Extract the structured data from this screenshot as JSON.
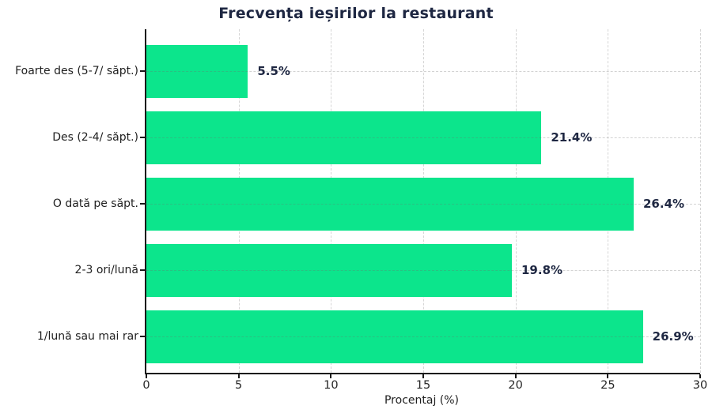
{
  "chart_data": {
    "type": "bar",
    "orientation": "horizontal",
    "title": "Frecvența ieșirilor la restaurant",
    "xlabel": "Procentaj (%)",
    "ylabel": "",
    "categories": [
      "Foarte des (5-7/ săpt.)",
      "Des (2-4/ săpt.)",
      "O dată pe săpt.",
      "2-3 ori/lună",
      "1/lună sau mai rar"
    ],
    "values": [
      5.5,
      21.4,
      26.4,
      19.8,
      26.9
    ],
    "value_labels": [
      "5.5%",
      "21.4%",
      "26.4%",
      "19.8%",
      "26.9%"
    ],
    "xlim": [
      0,
      30
    ],
    "xticks": [
      0,
      5,
      10,
      15,
      20,
      25,
      30
    ],
    "grid": "dashed vertical and horizontal gridlines",
    "legend": "none",
    "bar_color": "#0ce58c",
    "title_color": "#1e2742",
    "value_label_color": "#1e2742",
    "axis_text_color": "#262626"
  }
}
